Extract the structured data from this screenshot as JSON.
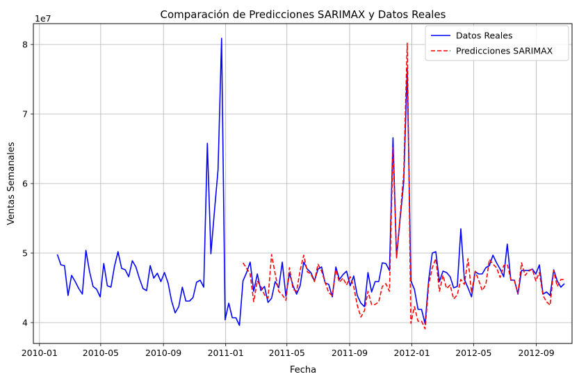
{
  "chart_data": {
    "type": "line",
    "title": "Comparación de Predicciones SARIMAX y Datos Reales",
    "xlabel": "Fecha",
    "ylabel": "Ventas Semanales",
    "offset_label": "1e7",
    "grid": true,
    "legend_position": "top-right",
    "x_ticks": [
      "2010-01",
      "2010-05",
      "2010-09",
      "2011-01",
      "2011-05",
      "2011-09",
      "2012-01",
      "2012-05",
      "2012-09"
    ],
    "y_ticks": [
      "4",
      "5",
      "6",
      "7",
      "8"
    ],
    "y_tick_values": [
      4,
      5,
      6,
      7,
      8
    ],
    "xlim": [
      "2009-12-20",
      "2012-11-10"
    ],
    "ylim": [
      3.7,
      8.3
    ],
    "series": [
      {
        "name": "Datos Reales",
        "color": "#0000ff",
        "style": "solid",
        "points": [
          [
            "2010-02-05",
            4.98
          ],
          [
            "2010-02-12",
            4.83
          ],
          [
            "2010-02-19",
            4.82
          ],
          [
            "2010-02-26",
            4.39
          ],
          [
            "2010-03-05",
            4.68
          ],
          [
            "2010-03-12",
            4.59
          ],
          [
            "2010-03-19",
            4.49
          ],
          [
            "2010-03-26",
            4.41
          ],
          [
            "2010-04-02",
            5.04
          ],
          [
            "2010-04-09",
            4.74
          ],
          [
            "2010-04-16",
            4.52
          ],
          [
            "2010-04-23",
            4.48
          ],
          [
            "2010-04-30",
            4.37
          ],
          [
            "2010-05-07",
            4.85
          ],
          [
            "2010-05-14",
            4.53
          ],
          [
            "2010-05-21",
            4.51
          ],
          [
            "2010-05-28",
            4.81
          ],
          [
            "2010-06-04",
            5.02
          ],
          [
            "2010-06-11",
            4.78
          ],
          [
            "2010-06-18",
            4.76
          ],
          [
            "2010-06-25",
            4.66
          ],
          [
            "2010-07-02",
            4.89
          ],
          [
            "2010-07-09",
            4.8
          ],
          [
            "2010-07-16",
            4.63
          ],
          [
            "2010-07-23",
            4.49
          ],
          [
            "2010-07-30",
            4.46
          ],
          [
            "2010-08-06",
            4.82
          ],
          [
            "2010-08-13",
            4.64
          ],
          [
            "2010-08-20",
            4.71
          ],
          [
            "2010-08-27",
            4.59
          ],
          [
            "2010-09-03",
            4.72
          ],
          [
            "2010-09-10",
            4.57
          ],
          [
            "2010-09-17",
            4.31
          ],
          [
            "2010-09-24",
            4.14
          ],
          [
            "2010-10-01",
            4.23
          ],
          [
            "2010-10-08",
            4.51
          ],
          [
            "2010-10-15",
            4.31
          ],
          [
            "2010-10-22",
            4.31
          ],
          [
            "2010-10-29",
            4.36
          ],
          [
            "2010-11-05",
            4.58
          ],
          [
            "2010-11-12",
            4.61
          ],
          [
            "2010-11-19",
            4.51
          ],
          [
            "2010-11-26",
            6.58
          ],
          [
            "2010-12-03",
            4.99
          ],
          [
            "2010-12-10",
            5.6
          ],
          [
            "2010-12-17",
            6.2
          ],
          [
            "2010-12-24",
            8.09
          ],
          [
            "2010-12-31",
            4.04
          ],
          [
            "2011-01-07",
            4.28
          ],
          [
            "2011-01-14",
            4.07
          ],
          [
            "2011-01-21",
            4.07
          ],
          [
            "2011-01-28",
            3.96
          ],
          [
            "2011-02-04",
            4.6
          ],
          [
            "2011-02-11",
            4.72
          ],
          [
            "2011-02-18",
            4.87
          ],
          [
            "2011-02-25",
            4.45
          ],
          [
            "2011-03-04",
            4.7
          ],
          [
            "2011-03-11",
            4.46
          ],
          [
            "2011-03-18",
            4.52
          ],
          [
            "2011-03-25",
            4.29
          ],
          [
            "2011-04-01",
            4.35
          ],
          [
            "2011-04-08",
            4.59
          ],
          [
            "2011-04-15",
            4.5
          ],
          [
            "2011-04-22",
            4.87
          ],
          [
            "2011-04-29",
            4.38
          ],
          [
            "2011-05-06",
            4.71
          ],
          [
            "2011-05-13",
            4.53
          ],
          [
            "2011-05-20",
            4.41
          ],
          [
            "2011-05-27",
            4.53
          ],
          [
            "2011-06-03",
            4.87
          ],
          [
            "2011-06-10",
            4.77
          ],
          [
            "2011-06-17",
            4.72
          ],
          [
            "2011-06-24",
            4.6
          ],
          [
            "2011-07-01",
            4.77
          ],
          [
            "2011-07-08",
            4.8
          ],
          [
            "2011-07-15",
            4.57
          ],
          [
            "2011-07-22",
            4.55
          ],
          [
            "2011-07-29",
            4.37
          ],
          [
            "2011-08-05",
            4.8
          ],
          [
            "2011-08-12",
            4.62
          ],
          [
            "2011-08-19",
            4.69
          ],
          [
            "2011-08-26",
            4.74
          ],
          [
            "2011-09-02",
            4.53
          ],
          [
            "2011-09-09",
            4.67
          ],
          [
            "2011-09-16",
            4.39
          ],
          [
            "2011-09-23",
            4.28
          ],
          [
            "2011-09-30",
            4.23
          ],
          [
            "2011-10-07",
            4.72
          ],
          [
            "2011-10-14",
            4.44
          ],
          [
            "2011-10-21",
            4.59
          ],
          [
            "2011-10-28",
            4.59
          ],
          [
            "2011-11-04",
            4.86
          ],
          [
            "2011-11-11",
            4.85
          ],
          [
            "2011-11-18",
            4.75
          ],
          [
            "2011-11-25",
            6.66
          ],
          [
            "2011-12-02",
            4.94
          ],
          [
            "2011-12-09",
            5.5
          ],
          [
            "2011-12-16",
            6.02
          ],
          [
            "2011-12-23",
            7.65
          ],
          [
            "2011-12-30",
            4.6
          ],
          [
            "2012-01-06",
            4.48
          ],
          [
            "2012-01-13",
            4.19
          ],
          [
            "2012-01-20",
            4.19
          ],
          [
            "2012-01-27",
            3.98
          ],
          [
            "2012-02-03",
            4.62
          ],
          [
            "2012-02-10",
            5.0
          ],
          [
            "2012-02-17",
            5.02
          ],
          [
            "2012-02-24",
            4.59
          ],
          [
            "2012-03-02",
            4.74
          ],
          [
            "2012-03-09",
            4.72
          ],
          [
            "2012-03-16",
            4.66
          ],
          [
            "2012-03-23",
            4.5
          ],
          [
            "2012-03-30",
            4.52
          ],
          [
            "2012-04-06",
            5.35
          ],
          [
            "2012-04-13",
            4.62
          ],
          [
            "2012-04-20",
            4.5
          ],
          [
            "2012-04-27",
            4.37
          ],
          [
            "2012-05-04",
            4.73
          ],
          [
            "2012-05-11",
            4.7
          ],
          [
            "2012-05-18",
            4.7
          ],
          [
            "2012-05-25",
            4.79
          ],
          [
            "2012-06-01",
            4.82
          ],
          [
            "2012-06-08",
            4.97
          ],
          [
            "2012-06-15",
            4.86
          ],
          [
            "2012-06-22",
            4.77
          ],
          [
            "2012-06-29",
            4.66
          ],
          [
            "2012-07-06",
            5.13
          ],
          [
            "2012-07-13",
            4.61
          ],
          [
            "2012-07-20",
            4.61
          ],
          [
            "2012-07-27",
            4.41
          ],
          [
            "2012-08-03",
            4.75
          ],
          [
            "2012-08-10",
            4.75
          ],
          [
            "2012-08-17",
            4.75
          ],
          [
            "2012-08-24",
            4.77
          ],
          [
            "2012-08-31",
            4.7
          ],
          [
            "2012-09-07",
            4.83
          ],
          [
            "2012-09-14",
            4.41
          ],
          [
            "2012-09-21",
            4.44
          ],
          [
            "2012-09-28",
            4.39
          ],
          [
            "2012-10-05",
            4.76
          ],
          [
            "2012-10-12",
            4.6
          ],
          [
            "2012-10-19",
            4.51
          ],
          [
            "2012-10-26",
            4.56
          ]
        ]
      },
      {
        "name": "Predicciones SARIMAX",
        "color": "#ff0000",
        "style": "dashed",
        "points": [
          [
            "2011-02-04",
            4.86
          ],
          [
            "2011-02-11",
            4.78
          ],
          [
            "2011-02-18",
            4.7
          ],
          [
            "2011-02-25",
            4.3
          ],
          [
            "2011-03-04",
            4.6
          ],
          [
            "2011-03-11",
            4.52
          ],
          [
            "2011-03-18",
            4.4
          ],
          [
            "2011-03-25",
            4.35
          ],
          [
            "2011-04-01",
            4.98
          ],
          [
            "2011-04-08",
            4.7
          ],
          [
            "2011-04-15",
            4.45
          ],
          [
            "2011-04-22",
            4.4
          ],
          [
            "2011-04-29",
            4.32
          ],
          [
            "2011-05-06",
            4.79
          ],
          [
            "2011-05-13",
            4.48
          ],
          [
            "2011-05-20",
            4.45
          ],
          [
            "2011-05-27",
            4.75
          ],
          [
            "2011-06-03",
            4.97
          ],
          [
            "2011-06-10",
            4.73
          ],
          [
            "2011-06-17",
            4.7
          ],
          [
            "2011-06-24",
            4.59
          ],
          [
            "2011-07-01",
            4.84
          ],
          [
            "2011-07-08",
            4.74
          ],
          [
            "2011-07-15",
            4.58
          ],
          [
            "2011-07-22",
            4.43
          ],
          [
            "2011-07-29",
            4.39
          ],
          [
            "2011-08-05",
            4.76
          ],
          [
            "2011-08-12",
            4.58
          ],
          [
            "2011-08-19",
            4.64
          ],
          [
            "2011-08-26",
            4.54
          ],
          [
            "2011-09-02",
            4.66
          ],
          [
            "2011-09-09",
            4.52
          ],
          [
            "2011-09-16",
            4.25
          ],
          [
            "2011-09-23",
            4.08
          ],
          [
            "2011-09-30",
            4.17
          ],
          [
            "2011-10-07",
            4.45
          ],
          [
            "2011-10-14",
            4.26
          ],
          [
            "2011-10-21",
            4.26
          ],
          [
            "2011-10-28",
            4.3
          ],
          [
            "2011-11-04",
            4.52
          ],
          [
            "2011-11-11",
            4.56
          ],
          [
            "2011-11-18",
            4.45
          ],
          [
            "2011-11-25",
            6.52
          ],
          [
            "2011-12-02",
            4.93
          ],
          [
            "2011-12-09",
            5.54
          ],
          [
            "2011-12-16",
            6.14
          ],
          [
            "2011-12-23",
            8.02
          ],
          [
            "2011-12-30",
            3.99
          ],
          [
            "2012-01-06",
            4.23
          ],
          [
            "2012-01-13",
            4.02
          ],
          [
            "2012-01-20",
            4.02
          ],
          [
            "2012-01-27",
            3.91
          ],
          [
            "2012-02-03",
            4.55
          ],
          [
            "2012-02-10",
            4.79
          ],
          [
            "2012-02-17",
            4.92
          ],
          [
            "2012-02-24",
            4.45
          ],
          [
            "2012-03-02",
            4.68
          ],
          [
            "2012-03-09",
            4.49
          ],
          [
            "2012-03-16",
            4.54
          ],
          [
            "2012-03-23",
            4.34
          ],
          [
            "2012-03-30",
            4.4
          ],
          [
            "2012-04-06",
            4.62
          ],
          [
            "2012-04-13",
            4.55
          ],
          [
            "2012-04-20",
            4.92
          ],
          [
            "2012-04-27",
            4.43
          ],
          [
            "2012-05-04",
            4.74
          ],
          [
            "2012-05-11",
            4.61
          ],
          [
            "2012-05-18",
            4.46
          ],
          [
            "2012-05-25",
            4.55
          ],
          [
            "2012-06-01",
            4.91
          ],
          [
            "2012-06-08",
            4.84
          ],
          [
            "2012-06-15",
            4.79
          ],
          [
            "2012-06-22",
            4.65
          ],
          [
            "2012-06-29",
            4.82
          ],
          [
            "2012-07-06",
            4.84
          ],
          [
            "2012-07-13",
            4.62
          ],
          [
            "2012-07-20",
            4.6
          ],
          [
            "2012-07-27",
            4.42
          ],
          [
            "2012-08-03",
            4.86
          ],
          [
            "2012-08-10",
            4.68
          ],
          [
            "2012-08-17",
            4.74
          ],
          [
            "2012-08-24",
            4.77
          ],
          [
            "2012-08-31",
            4.6
          ],
          [
            "2012-09-07",
            4.72
          ],
          [
            "2012-09-14",
            4.39
          ],
          [
            "2012-09-21",
            4.3
          ],
          [
            "2012-09-28",
            4.25
          ],
          [
            "2012-10-05",
            4.75
          ],
          [
            "2012-10-12",
            4.52
          ],
          [
            "2012-10-19",
            4.62
          ],
          [
            "2012-10-26",
            4.62
          ]
        ]
      }
    ]
  }
}
